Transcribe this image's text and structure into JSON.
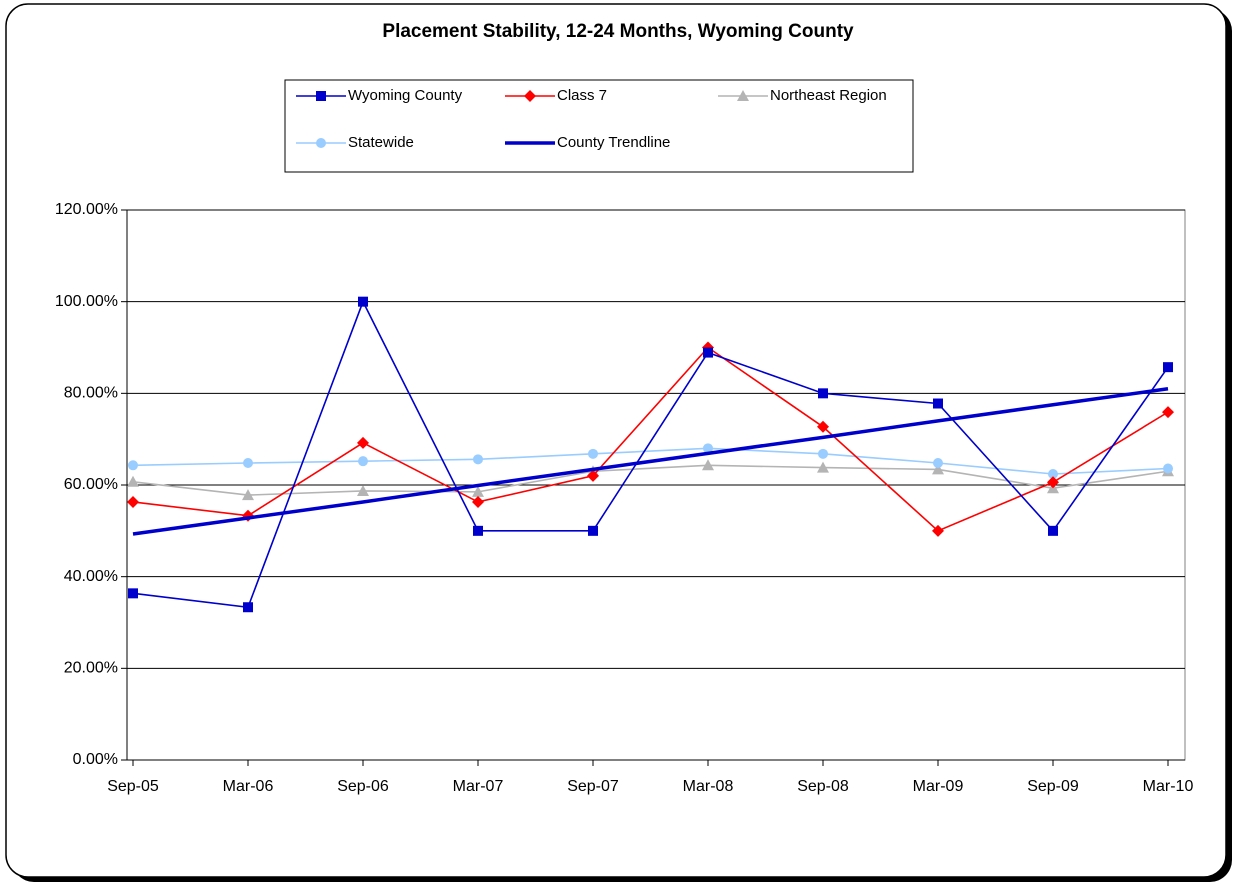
{
  "chart_data": {
    "type": "line",
    "title": "Placement Stability, 12-24 Months, Wyoming County",
    "categories": [
      "Sep-05",
      "Mar-06",
      "Sep-06",
      "Mar-07",
      "Sep-07",
      "Mar-08",
      "Sep-08",
      "Mar-09",
      "Sep-09",
      "Mar-10"
    ],
    "ylim": [
      0,
      120
    ],
    "yticks": [
      {
        "value": 0,
        "label": "0.00%"
      },
      {
        "value": 20,
        "label": "20.00%"
      },
      {
        "value": 40,
        "label": "40.00%"
      },
      {
        "value": 60,
        "label": "60.00%"
      },
      {
        "value": 80,
        "label": "80.00%"
      },
      {
        "value": 100,
        "label": "100.00%"
      },
      {
        "value": 120,
        "label": "120.00%"
      }
    ],
    "grid": true,
    "legend": "top",
    "series": [
      {
        "name": "Wyoming County",
        "color": "#0000cc",
        "marker": "square",
        "values": [
          36.36,
          33.33,
          100,
          50,
          50,
          88.89,
          80,
          77.78,
          50,
          85.71
        ]
      },
      {
        "name": "Class 7",
        "color": "#ff0000",
        "marker": "diamond",
        "values": [
          56.3,
          53.3,
          69.2,
          56.3,
          62,
          90,
          72.7,
          50,
          60.6,
          75.9
        ]
      },
      {
        "name": "Northeast Region",
        "color": "#b4b4b4",
        "marker": "triangle",
        "values": [
          60.7,
          57.8,
          58.7,
          58.5,
          63,
          64.3,
          63.8,
          63.4,
          59.3,
          63
        ]
      },
      {
        "name": "Statewide",
        "color": "#99ccff",
        "marker": "circle",
        "values": [
          64.3,
          64.8,
          65.2,
          65.6,
          66.8,
          68,
          66.8,
          64.8,
          62.4,
          63.6
        ]
      },
      {
        "name": "County Trendline",
        "color": "#0000cc",
        "marker": "none",
        "values": [
          49.3,
          52.8,
          56.3,
          59.9,
          63.4,
          66.9,
          70.4,
          74,
          77.5,
          81
        ]
      }
    ]
  }
}
